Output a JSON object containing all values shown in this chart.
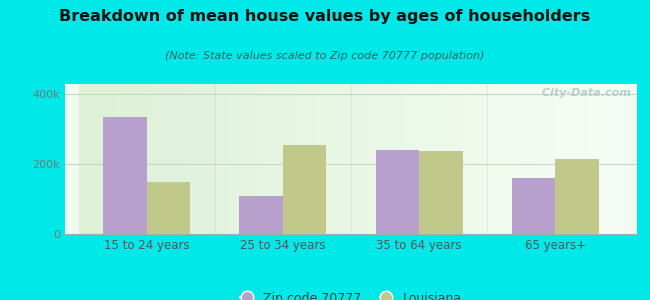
{
  "title": "Breakdown of mean house values by ages of householders",
  "subtitle": "(Note: State values scaled to Zip code 70777 population)",
  "categories": [
    "15 to 24 years",
    "25 to 34 years",
    "35 to 64 years",
    "65 years+"
  ],
  "zip_values": [
    335000,
    110000,
    240000,
    160000
  ],
  "state_values": [
    150000,
    255000,
    237000,
    215000
  ],
  "zip_color": "#b8a0cc",
  "state_color": "#c0c88a",
  "background_color": "#00e8e8",
  "plot_bg": "#e8f5e0",
  "ylim": [
    0,
    430000
  ],
  "yticks": [
    0,
    200000,
    400000
  ],
  "ytick_labels": [
    "0",
    "200k",
    "400k"
  ],
  "bar_width": 0.32,
  "legend_zip": "Zip code 70777",
  "legend_state": "Louisiana",
  "watermark": " City-Data.com"
}
